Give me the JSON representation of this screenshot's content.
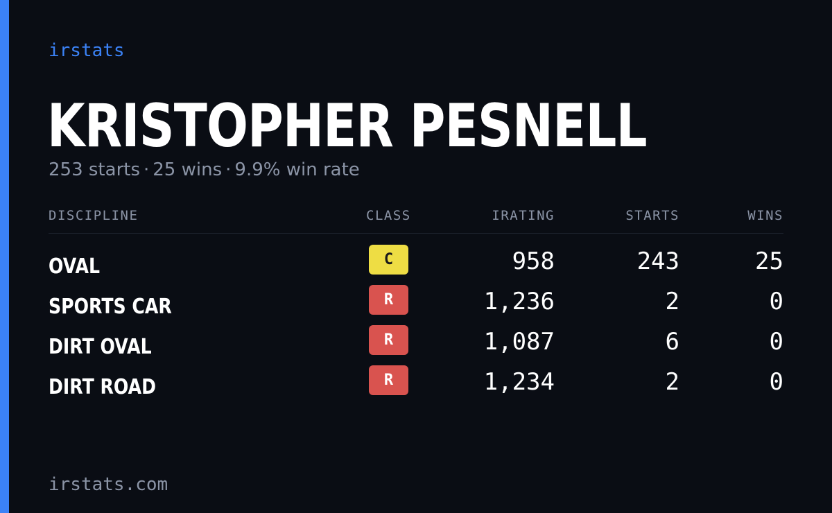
{
  "brand": "irstats",
  "driver": {
    "name": "KRISTOPHER PESNELL",
    "starts": "253 starts",
    "wins": "25 wins",
    "win_rate": "9.9% win rate",
    "separator": "·"
  },
  "table": {
    "headers": {
      "discipline": "DISCIPLINE",
      "class": "CLASS",
      "irating": "IRATING",
      "starts": "STARTS",
      "wins": "WINS"
    },
    "rows": [
      {
        "discipline": "OVAL",
        "class": "C",
        "class_color": "#eedd44",
        "irating": "958",
        "starts": "243",
        "wins": "25"
      },
      {
        "discipline": "SPORTS CAR",
        "class": "R",
        "class_color": "#d9534f",
        "irating": "1,236",
        "starts": "2",
        "wins": "0"
      },
      {
        "discipline": "DIRT OVAL",
        "class": "R",
        "class_color": "#d9534f",
        "irating": "1,087",
        "starts": "6",
        "wins": "0"
      },
      {
        "discipline": "DIRT ROAD",
        "class": "R",
        "class_color": "#d9534f",
        "irating": "1,234",
        "starts": "2",
        "wins": "0"
      }
    ]
  },
  "footer": "irstats.com",
  "colors": {
    "accent": "#3b82f6",
    "background": "#0a0d14",
    "muted_text": "#8b94a6"
  }
}
